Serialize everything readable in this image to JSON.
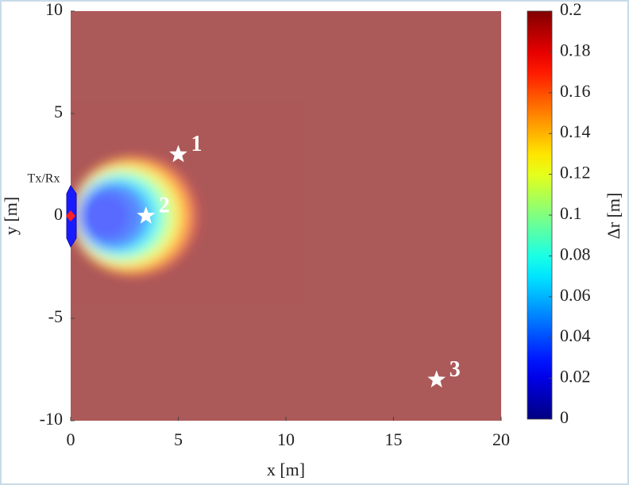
{
  "chart_data": {
    "type": "heatmap",
    "xlabel": "x [m]",
    "ylabel": "y [m]",
    "xlim": [
      0,
      20
    ],
    "xticks": [
      0,
      5,
      10,
      15,
      20
    ],
    "ylim": [
      -10,
      10
    ],
    "yticks": [
      -10,
      -5,
      0,
      5,
      10
    ],
    "background_value": 0.2,
    "opacity": 0.65,
    "regions": [
      {
        "center_x": 3.0,
        "center_y": 0,
        "radius": 3.0,
        "value": 0.19
      },
      {
        "center_x": 2.85,
        "center_y": 0,
        "radius": 2.8,
        "value": 0.16
      },
      {
        "center_x": 2.7,
        "center_y": 0,
        "radius": 2.6,
        "value": 0.14
      },
      {
        "center_x": 2.55,
        "center_y": 0,
        "radius": 2.4,
        "value": 0.12
      },
      {
        "center_x": 2.4,
        "center_y": 0,
        "radius": 2.2,
        "value": 0.1
      },
      {
        "center_x": 2.25,
        "center_y": 0,
        "radius": 2.0,
        "value": 0.08
      },
      {
        "center_x": 2.1,
        "center_y": 0,
        "radius": 1.8,
        "value": 0.06
      },
      {
        "center_x": 1.9,
        "center_y": 0,
        "radius": 1.6,
        "value": 0.04
      },
      {
        "center_x": 1.6,
        "center_y": 0,
        "radius": 1.2,
        "value": 0.03
      }
    ],
    "colorbar": {
      "colormap": "jet",
      "clim": [
        0,
        0.2
      ],
      "ticks": [
        0,
        0.02,
        0.04,
        0.06,
        0.08,
        0.1,
        0.12,
        0.14,
        0.16,
        0.18,
        0.2
      ],
      "label": "Δr [m]"
    },
    "points": {
      "x": [
        5,
        3.5,
        17
      ],
      "y": [
        3,
        0,
        -8
      ],
      "labels": [
        "1",
        "2",
        "3"
      ]
    },
    "transceiver": {
      "x": 0,
      "y": 0,
      "label": "Tx/Rx"
    }
  }
}
